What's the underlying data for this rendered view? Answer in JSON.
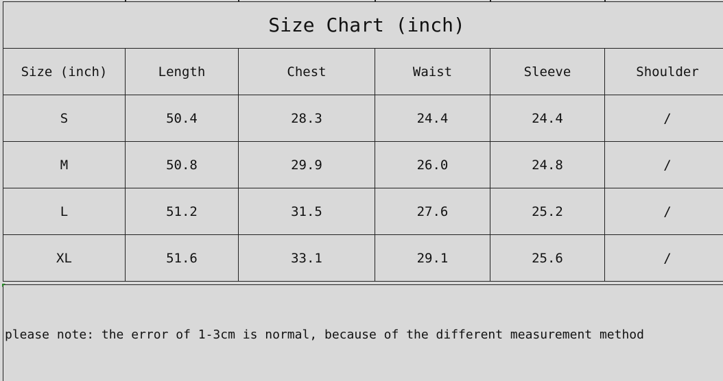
{
  "title": "Size Chart (inch)",
  "headers": [
    "Size (inch)",
    "Length",
    "Chest",
    "Waist",
    "Sleeve",
    "Shoulder"
  ],
  "rows": [
    [
      "S",
      "50.4",
      "28.3",
      "24.4",
      "24.4",
      "/"
    ],
    [
      "M",
      "50.8",
      "29.9",
      "26.0",
      "24.8",
      "/"
    ],
    [
      "L",
      "51.2",
      "31.5",
      "27.6",
      "25.2",
      "/"
    ],
    [
      "XL",
      "51.6",
      "33.1",
      "29.1",
      "25.6",
      "/"
    ]
  ],
  "note": "please note: the error of 1-3cm is normal, because of the different measurement method"
}
